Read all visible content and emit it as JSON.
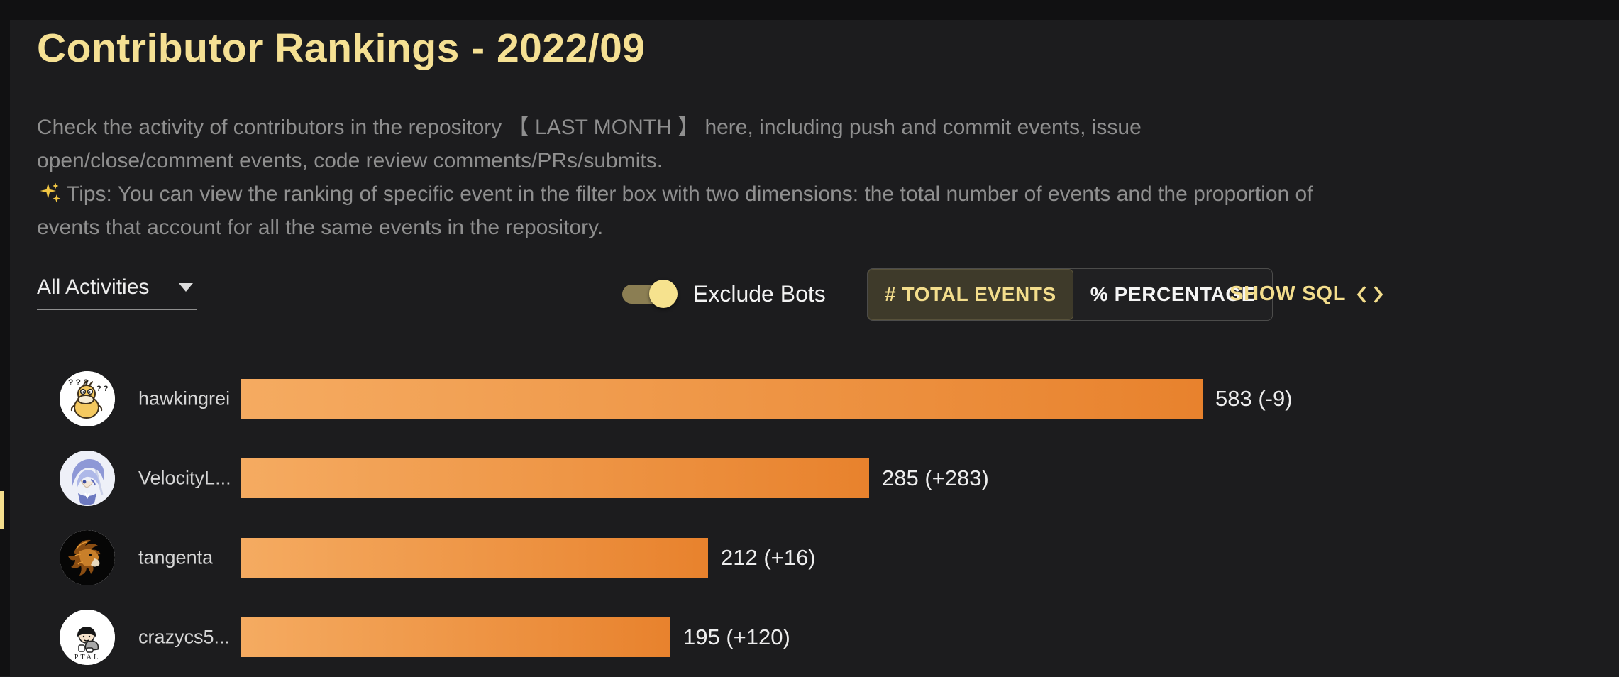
{
  "header": {
    "title": "Contributor Rankings - 2022/09",
    "description": "Check the activity of contributors in the repository 【 LAST MONTH 】 here, including push and commit events, issue open/close/comment events, code review comments/PRs/submits.",
    "tips": "Tips: You can view the ranking of specific event in the filter box with two dimensions: the total number of events and the proportion of events that account for all the same events in the repository.",
    "tips_icon": "sparkles-icon"
  },
  "controls": {
    "activity_filter": {
      "value": "All Activities",
      "icon": "caret-down-icon"
    },
    "exclude_bots": {
      "label": "Exclude Bots",
      "enabled": true
    },
    "metric_toggle": {
      "options": [
        {
          "label": "# TOTAL EVENTS",
          "selected": true
        },
        {
          "label": "% PERCENTAGE",
          "selected": false
        }
      ]
    },
    "show_sql": {
      "label": "SHOW SQL",
      "icon": "code-icon"
    }
  },
  "chart_data": {
    "type": "bar",
    "orientation": "horizontal",
    "title": "Contributor Rankings - 2022/09",
    "categories": [
      "hawkingrei",
      "VelocityL...",
      "tangenta",
      "crazycs5..."
    ],
    "series": [
      {
        "name": "total_events",
        "values": [
          583,
          285,
          212,
          195
        ]
      },
      {
        "name": "change_vs_previous",
        "values": [
          -9,
          283,
          16,
          120
        ]
      }
    ],
    "value_labels": [
      "583 (-9)",
      "285 (+283)",
      "212 (+16)",
      "195 (+120)"
    ],
    "avatars": [
      "psyduck-avatar",
      "anime-boy-avatar",
      "lion-avatar",
      "ptal-kid-avatar"
    ],
    "axis_max": 436,
    "grid": false,
    "legend": false,
    "bar_gradient": [
      "#f5ab61",
      "#e8822d"
    ]
  },
  "colors": {
    "background": "#1c1c1e",
    "accent_yellow": "#f3dd8c",
    "title_yellow": "#f5e093",
    "muted_text": "#8f8f8f",
    "bar_start": "#f5ab61",
    "bar_end": "#e8822d"
  }
}
